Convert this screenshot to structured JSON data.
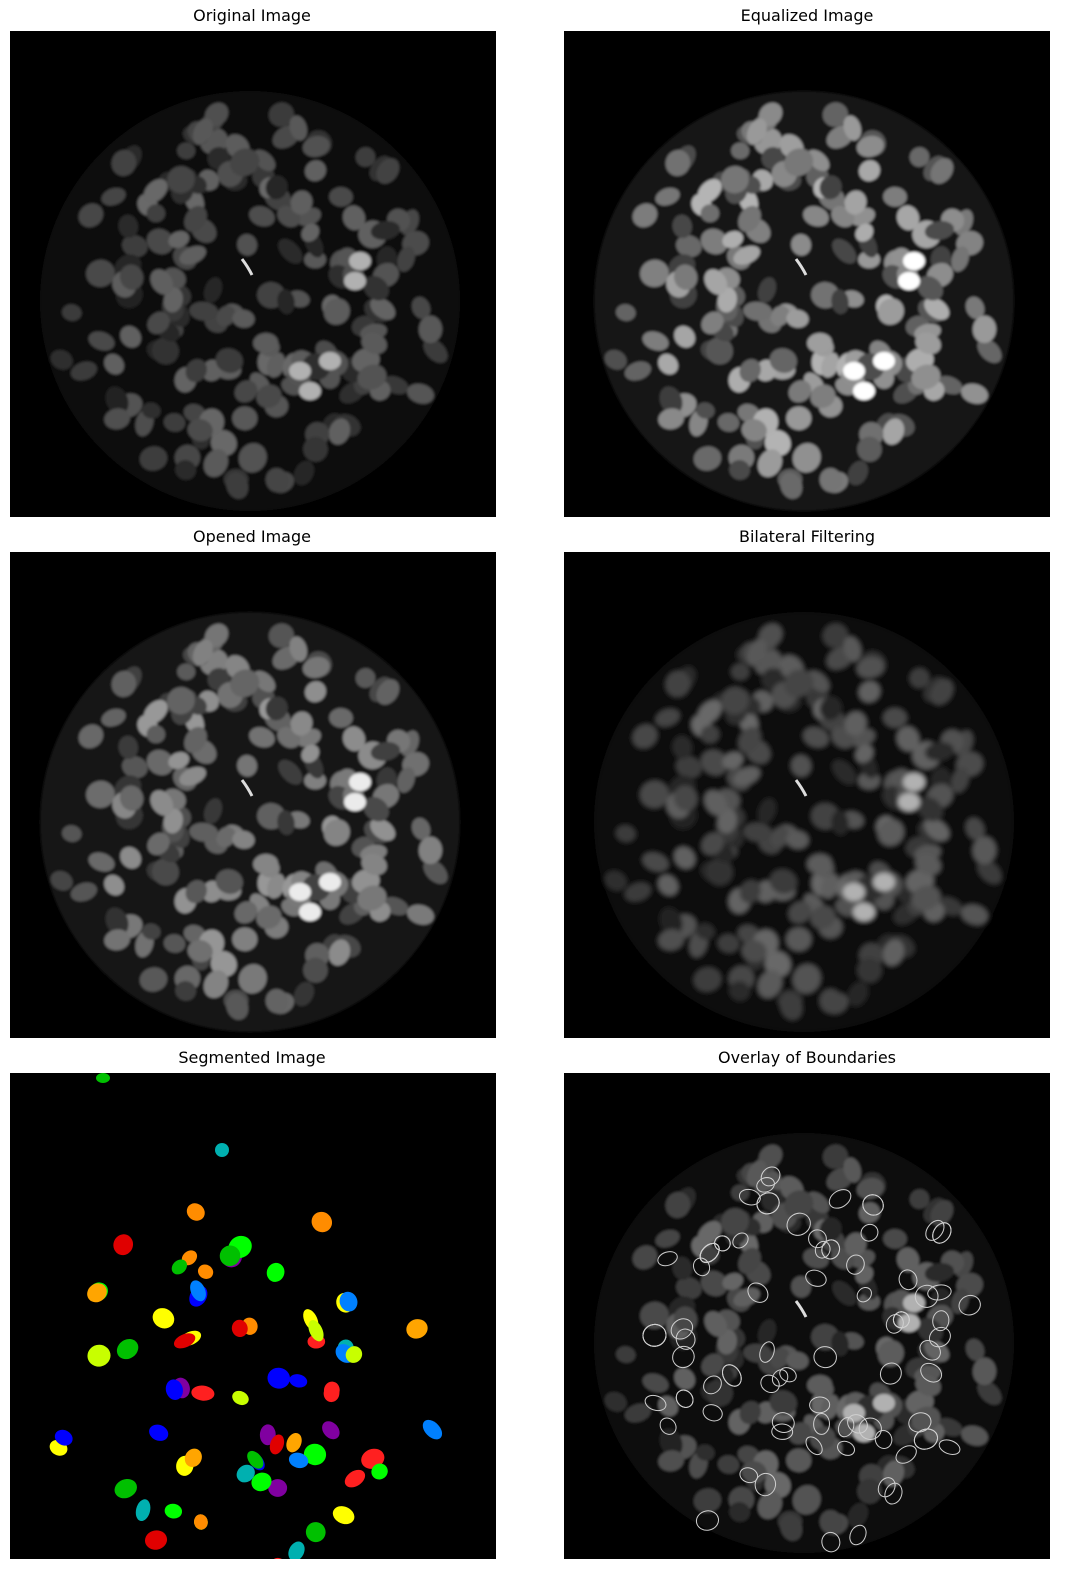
{
  "figure": {
    "panels": [
      {
        "title": "Original Image",
        "style": "original"
      },
      {
        "title": "Equalized Image",
        "style": "equalized"
      },
      {
        "title": "Opened Image",
        "style": "opened"
      },
      {
        "title": "Bilateral Filtering",
        "style": "bilateral"
      },
      {
        "title": "Segmented Image",
        "style": "segmented"
      },
      {
        "title": "Overlay of Boundaries",
        "style": "overlay"
      }
    ],
    "colors": {
      "background": "#000000",
      "segment_palette": [
        "#ffff00",
        "#e00000",
        "#00ff00",
        "#0000ff",
        "#ff8c00",
        "#8000a0",
        "#00b0b0",
        "#0080ff",
        "#ffa500",
        "#c8ff00",
        "#00c000",
        "#ff2020"
      ],
      "boundary": "#d0d0d0"
    }
  }
}
